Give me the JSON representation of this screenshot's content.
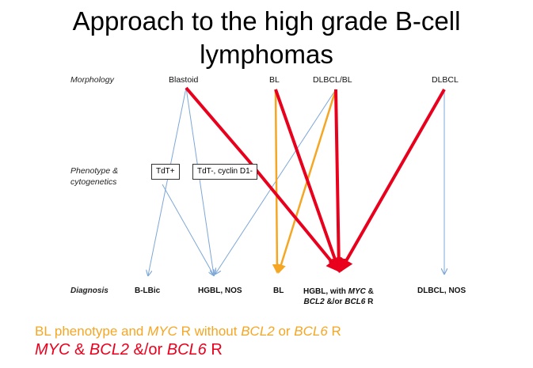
{
  "title": {
    "line1": "Approach to the high grade B-cell",
    "line2": "lymphomas"
  },
  "rows": {
    "morphology": "Morphology",
    "phenotype_line1": "Phenotype &",
    "phenotype_line2": "cytogenetics",
    "diagnosis": "Diagnosis"
  },
  "morphology": {
    "blastoid": "Blastoid",
    "bl": "BL",
    "dlbcl_bl": "DLBCL/BL",
    "dlbcl": "DLBCL"
  },
  "phenotype": {
    "tdt_pos": "TdT+",
    "tdt_neg": "TdT-, cyclin D1-"
  },
  "diagnosis": {
    "blbic": "B-LBic",
    "hgbl_nos": "HGBL, NOS",
    "bl": "BL",
    "hgbl_myc_line1_a": "HGBL, with ",
    "hgbl_myc_line1_b": "MYC",
    "hgbl_myc_line1_c": " &",
    "hgbl_myc_line2_a": "BCL2",
    "hgbl_myc_line2_b": " &/or ",
    "hgbl_myc_line2_c": "BCL6",
    "hgbl_myc_line2_d": " R",
    "dlbcl_nos": "DLBCL, NOS"
  },
  "legend": {
    "orange": {
      "a": "BL phenotype and ",
      "b": "MYC",
      "c": " R without ",
      "d": "BCL2",
      "e": " or ",
      "f": "BCL6",
      "g": " R"
    },
    "red": {
      "a": "MYC",
      "b": " & ",
      "c": "BCL2",
      "d": " &/or ",
      "e": "BCL6",
      "f": " R"
    }
  },
  "colors": {
    "blue": "#7da7d9",
    "orange": "#f5a623",
    "red": "#e8001c"
  }
}
